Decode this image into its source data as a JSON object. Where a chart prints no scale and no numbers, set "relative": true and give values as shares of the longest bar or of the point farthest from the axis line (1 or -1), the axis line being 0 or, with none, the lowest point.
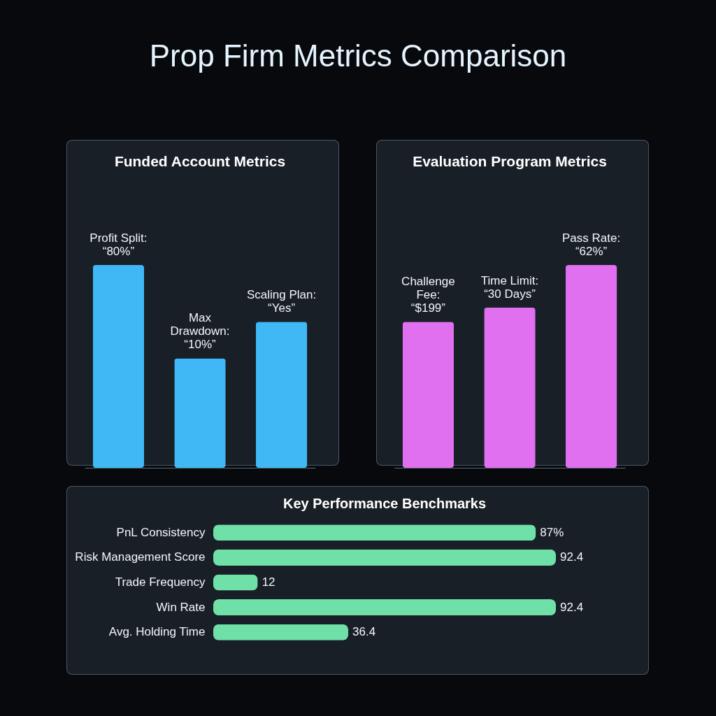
{
  "chart_data": [
    {
      "type": "other",
      "title": "Prop Firm Metrics Comparison"
    },
    {
      "type": "bar",
      "title": "Funded Account Metrics",
      "relative": true,
      "color": "#3fb8f5",
      "categories": [
        "Profit Split:\n“80%”",
        "Max\nDrawdown:\n“10%”",
        "Scaling Plan:\n“Yes”"
      ],
      "values": [
        1,
        0.54,
        0.72
      ]
    },
    {
      "type": "bar",
      "title": "Evaluation Program Metrics",
      "relative": true,
      "color": "#e070f0",
      "categories": [
        "Challenge\nFee:\n“$199”",
        "Time Limit:\n“30 Days”",
        "Pass Rate:\n“62%”"
      ],
      "values": [
        0.72,
        0.79,
        1
      ]
    },
    {
      "type": "bar",
      "title": "Key Performance Benchmarks",
      "orientation": "horizontal",
      "color": "#6fe0a8",
      "categories": [
        "PnL Consistency",
        "Risk Management Score",
        "Trade Frequency",
        "Win Rate",
        "Avg. Holding Time"
      ],
      "values": [
        87,
        92.4,
        12,
        92.4,
        36.4
      ],
      "value_labels": [
        "87%",
        "92.4",
        "12",
        "92.4",
        "36.4"
      ]
    }
  ]
}
